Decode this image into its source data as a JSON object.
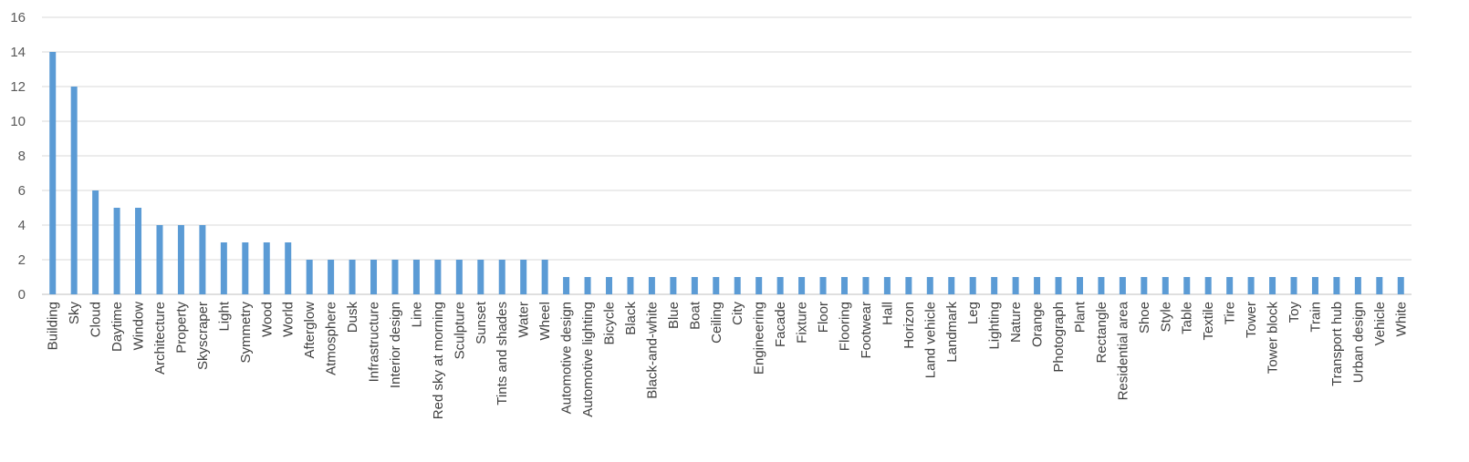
{
  "chart_data": {
    "type": "bar",
    "title": "",
    "xlabel": "",
    "ylabel": "",
    "ylim": [
      0,
      16
    ],
    "yticks": [
      0,
      2,
      4,
      6,
      8,
      10,
      12,
      14,
      16
    ],
    "grid": true,
    "bar_color": "#5b9bd5",
    "categories": [
      "Building",
      "Sky",
      "Cloud",
      "Daytime",
      "Window",
      "Architecture",
      "Property",
      "Skyscraper",
      "Light",
      "Symmetry",
      "Wood",
      "World",
      "Afterglow",
      "Atmosphere",
      "Dusk",
      "Infrastructure",
      "Interior design",
      "Line",
      "Red sky at morning",
      "Sculpture",
      "Sunset",
      "Tints and shades",
      "Water",
      "Wheel",
      "Automotive design",
      "Automotive lighting",
      "Bicycle",
      "Black",
      "Black-and-white",
      "Blue",
      "Boat",
      "Ceiling",
      "City",
      "Engineering",
      "Facade",
      "Fixture",
      "Floor",
      "Flooring",
      "Footwear",
      "Hall",
      "Horizon",
      "Land vehicle",
      "Landmark",
      "Leg",
      "Lighting",
      "Nature",
      "Orange",
      "Photograph",
      "Plant",
      "Rectangle",
      "Residential area",
      "Shoe",
      "Style",
      "Table",
      "Textile",
      "Tire",
      "Tower",
      "Tower block",
      "Toy",
      "Train",
      "Transport hub",
      "Urban design",
      "Vehicle",
      "White"
    ],
    "values": [
      14,
      12,
      6,
      5,
      5,
      4,
      4,
      4,
      3,
      3,
      3,
      3,
      2,
      2,
      2,
      2,
      2,
      2,
      2,
      2,
      2,
      2,
      2,
      2,
      1,
      1,
      1,
      1,
      1,
      1,
      1,
      1,
      1,
      1,
      1,
      1,
      1,
      1,
      1,
      1,
      1,
      1,
      1,
      1,
      1,
      1,
      1,
      1,
      1,
      1,
      1,
      1,
      1,
      1,
      1,
      1,
      1,
      1,
      1,
      1,
      1,
      1,
      1,
      1
    ]
  }
}
